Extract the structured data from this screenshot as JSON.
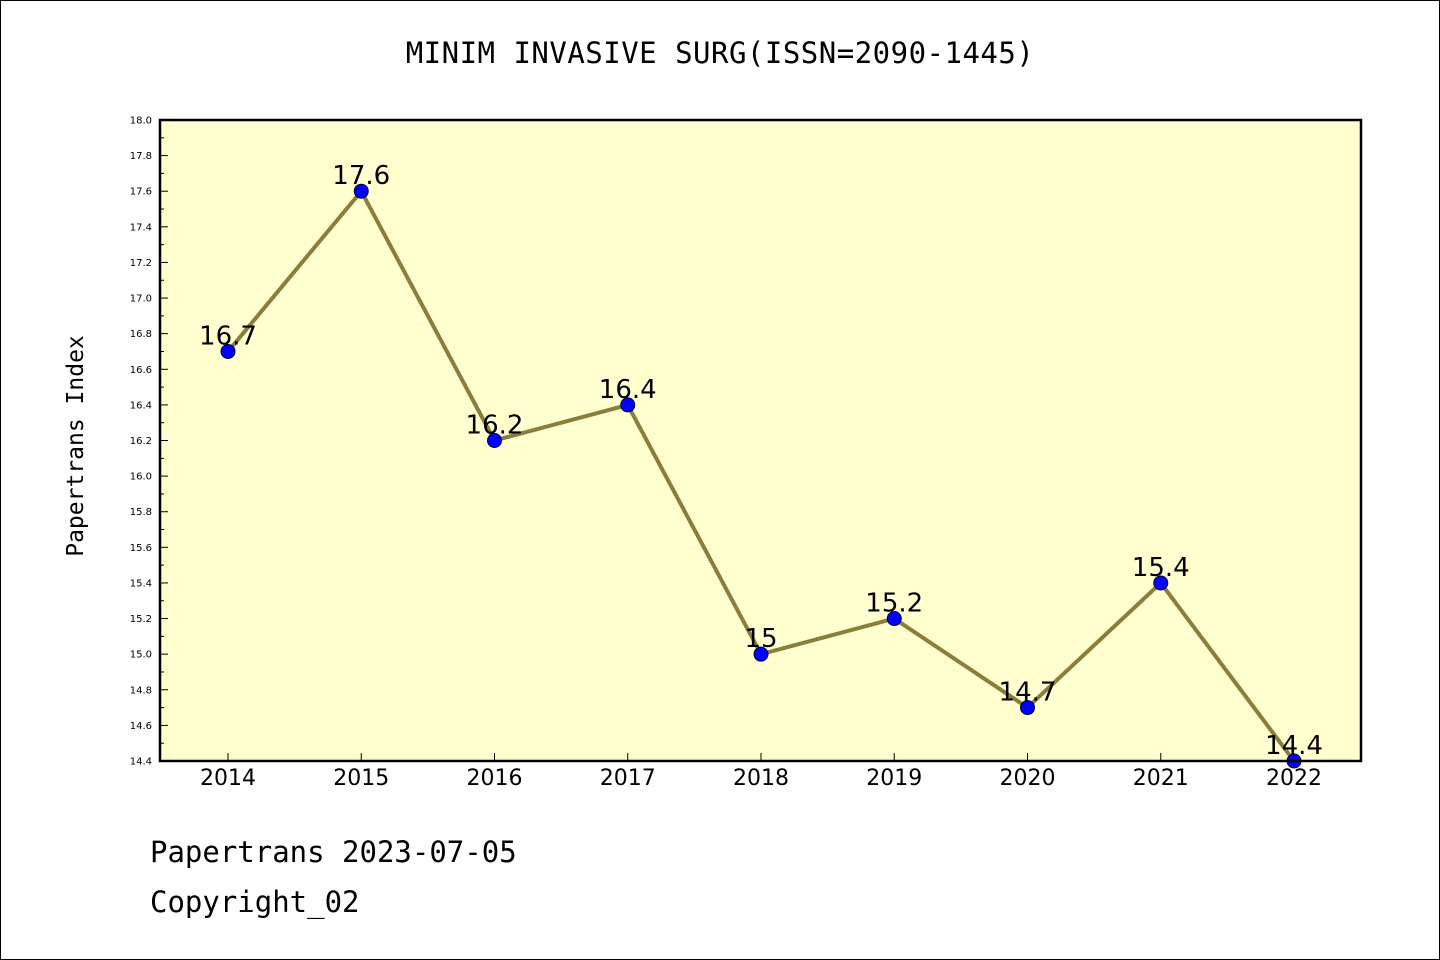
{
  "chart_data": {
    "type": "line",
    "title": "MINIM INVASIVE SURG(ISSN=2090-1445)",
    "ylabel": "Papertrans Index",
    "xlabel": "",
    "x": [
      "2014",
      "2015",
      "2016",
      "2017",
      "2018",
      "2019",
      "2020",
      "2021",
      "2022"
    ],
    "series": [
      {
        "values": [
          16.7,
          17.6,
          16.2,
          16.4,
          15.0,
          15.2,
          14.7,
          15.4,
          14.4
        ],
        "labels": [
          "16.7",
          "17.6",
          "16.2",
          "16.4",
          "15",
          "15.2",
          "14.7",
          "15.4",
          "14.4"
        ]
      }
    ],
    "ylim": [
      14.4,
      18.0
    ],
    "ytick_step": 0.2,
    "ytick_labels": [
      "14.4",
      "14.6",
      "14.8",
      "15.0",
      "15.2",
      "15.4",
      "15.6",
      "15.8",
      "16.0",
      "16.2",
      "16.4",
      "16.6",
      "16.8",
      "17.0",
      "17.2",
      "17.4",
      "17.6",
      "17.8",
      "18.0"
    ],
    "grid": false,
    "colors": {
      "plot_background": "#ffffd0",
      "line": "#8b7d3a",
      "marker": "#0000ff"
    }
  },
  "footer": {
    "line1": "Papertrans 2023-07-05",
    "line2": "Copyright_02"
  }
}
